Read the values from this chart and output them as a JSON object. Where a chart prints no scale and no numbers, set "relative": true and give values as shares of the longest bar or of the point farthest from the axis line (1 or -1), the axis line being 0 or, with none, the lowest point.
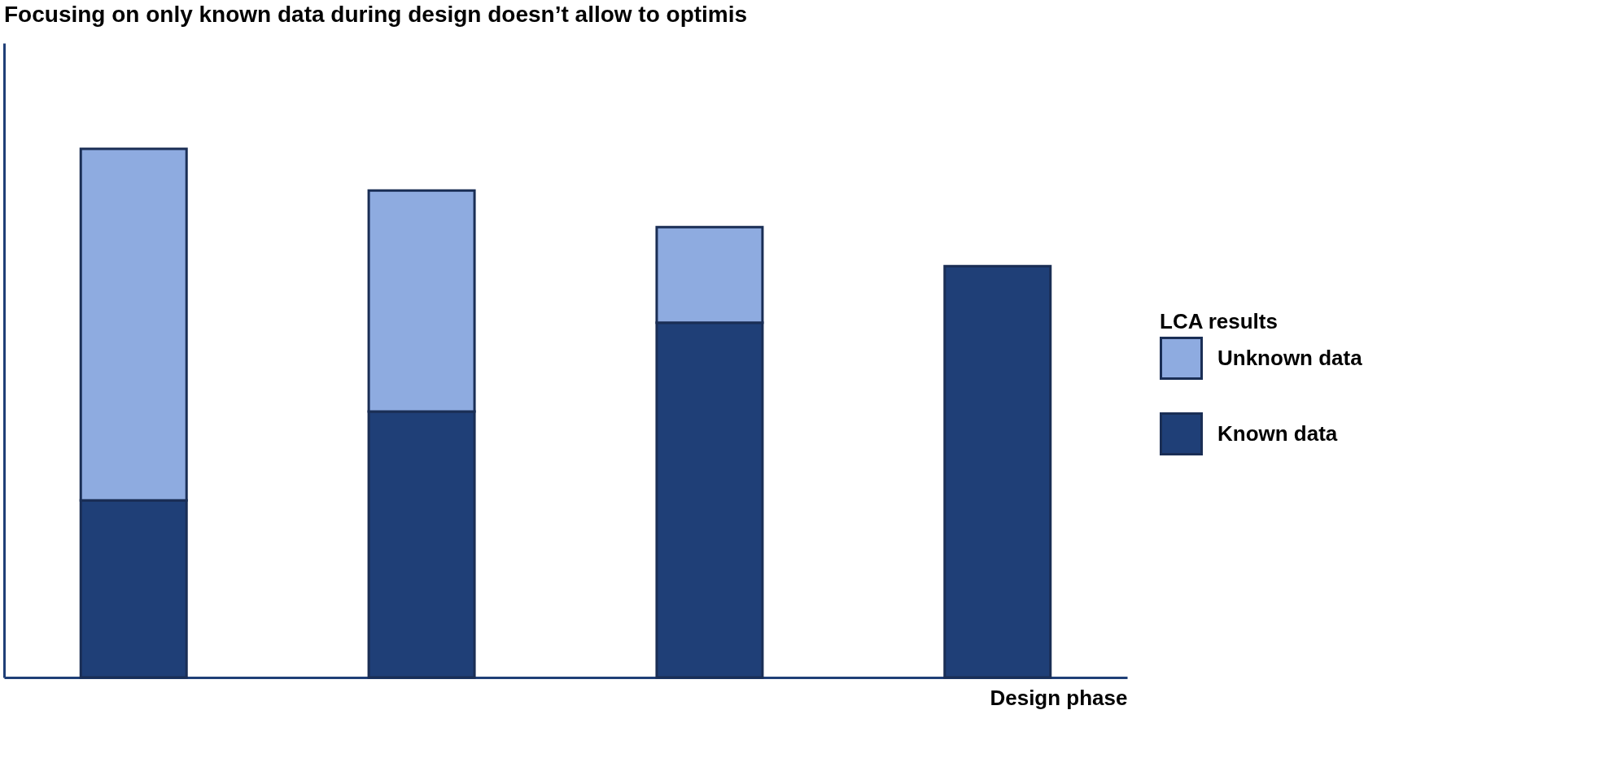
{
  "chart_data": {
    "type": "bar",
    "title": "Focusing on only known data during design doesn’t allow to optimis",
    "xlabel": "Design phase",
    "legend_title": "LCA results",
    "categories": [
      null,
      null,
      null,
      null
    ],
    "stacked": true,
    "relative": true,
    "legend": "right",
    "series": [
      {
        "name": "Known data",
        "color": "#1f3f77",
        "values": [
          0.335,
          0.503,
          0.671,
          0.778
        ]
      },
      {
        "name": "Unknown data",
        "color": "#8eabe0",
        "values": [
          0.665,
          0.418,
          0.181,
          null
        ]
      }
    ]
  }
}
